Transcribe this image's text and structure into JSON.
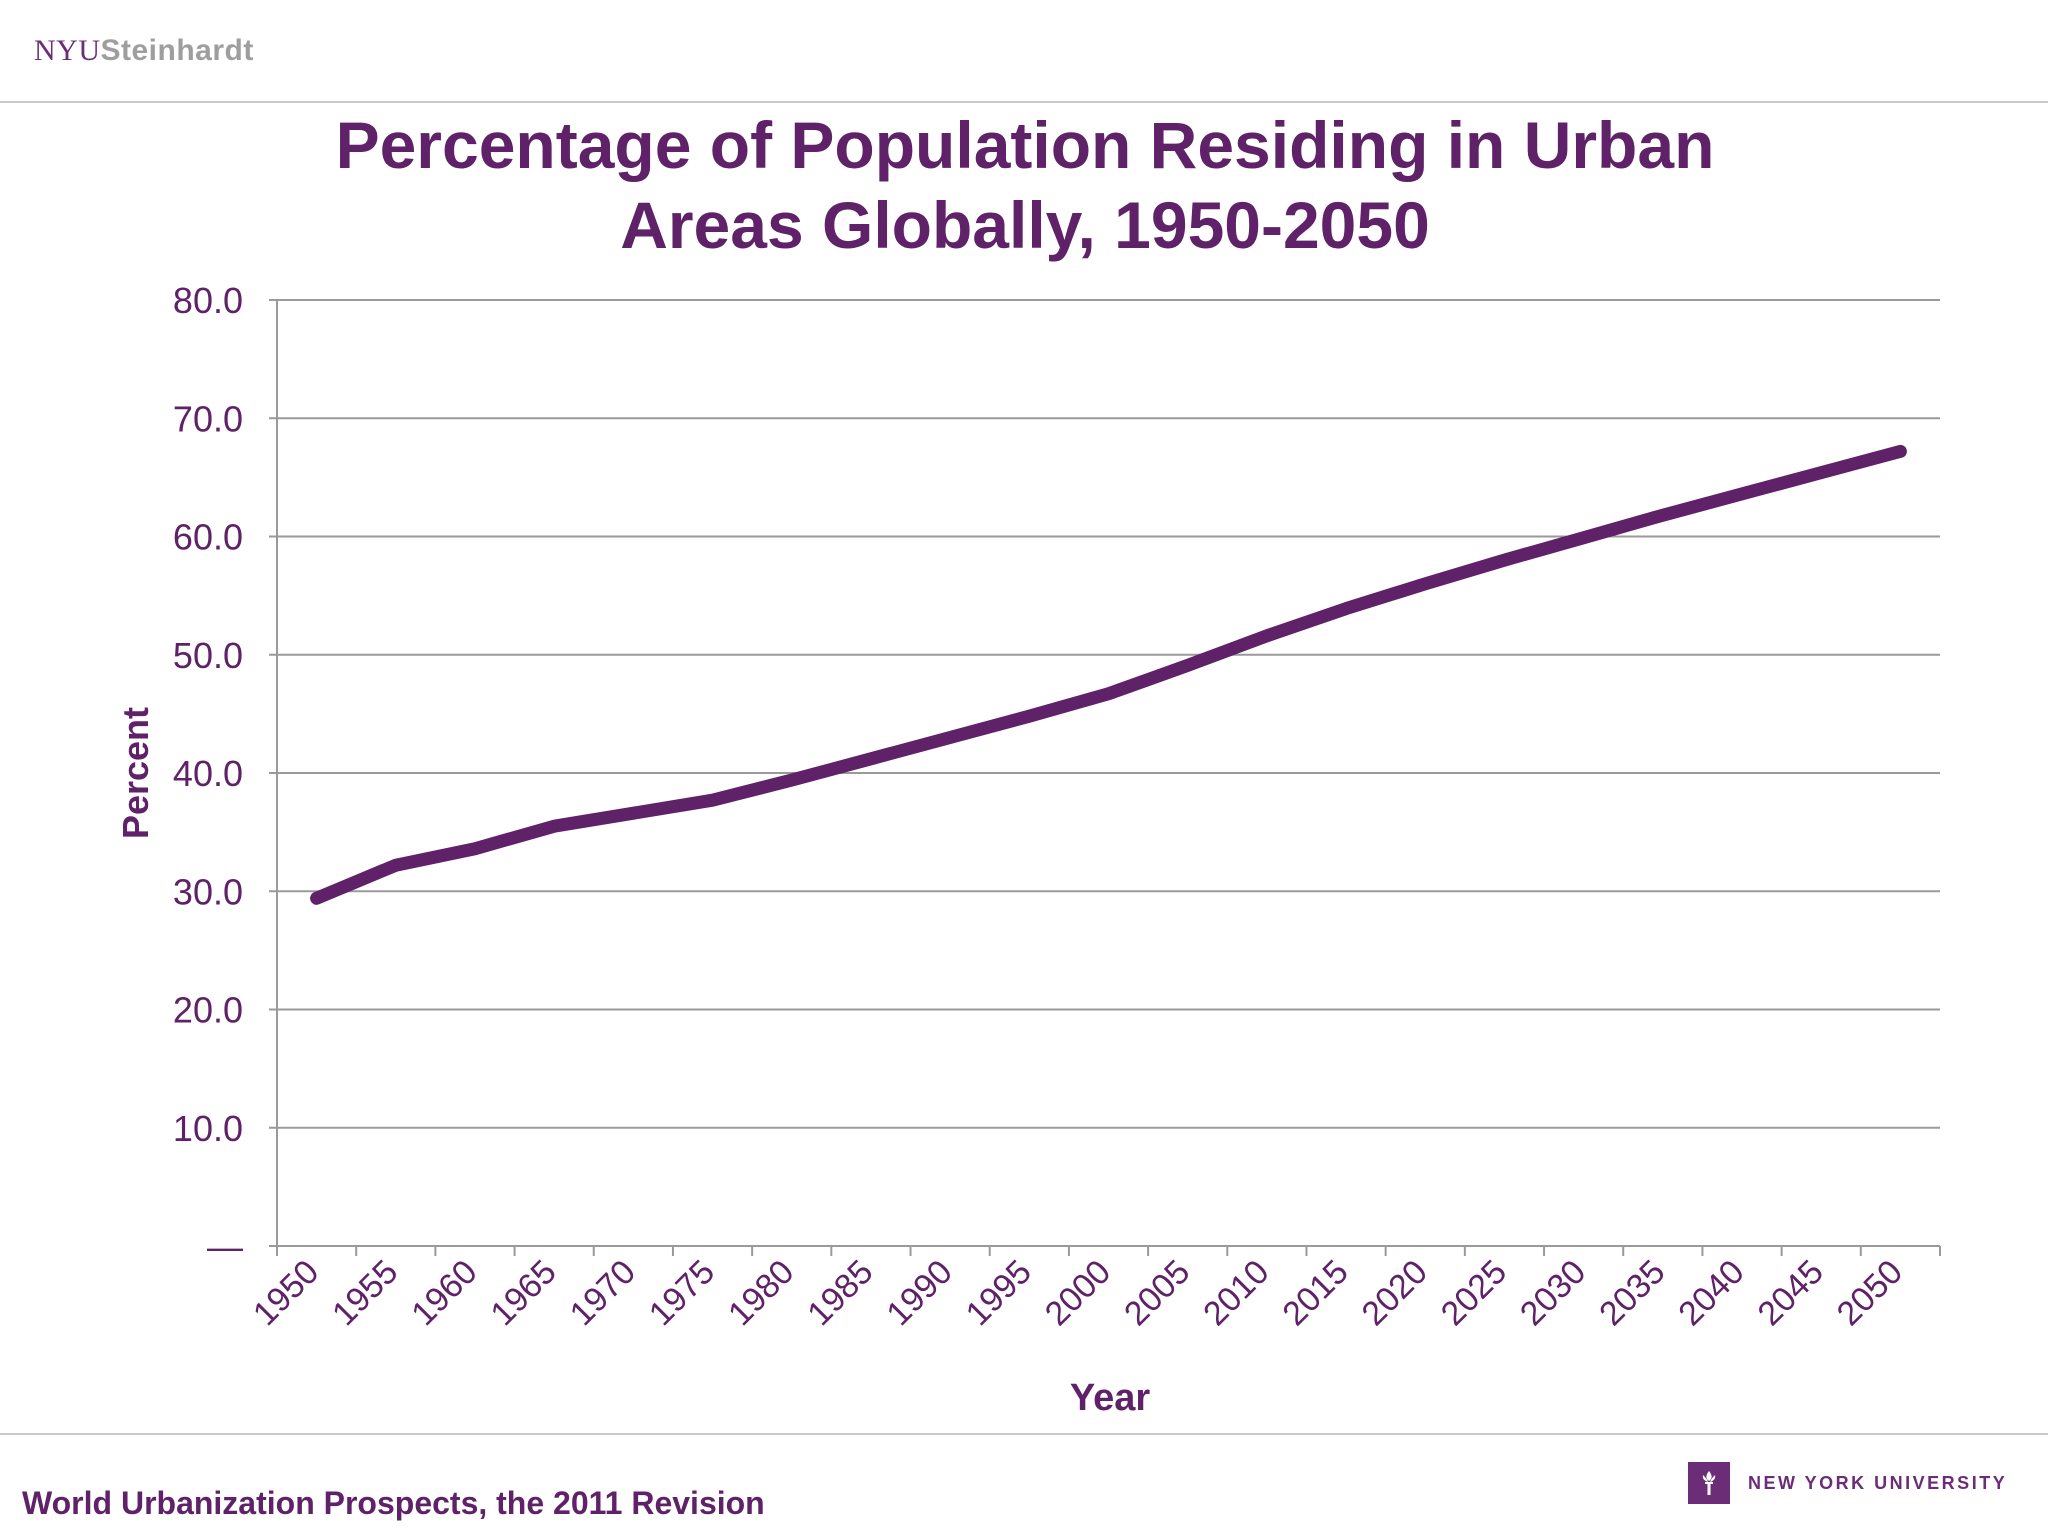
{
  "header": {
    "logo_nyu": "NYU",
    "logo_steinhardt": "Steinhardt"
  },
  "footer": {
    "source": "World Urbanization Prospects, the 2011 Revision",
    "university": "NEW YORK UNIVERSITY"
  },
  "colors": {
    "brand_purple": "#5f2168",
    "gridline": "#9a9a9a"
  },
  "icons": {
    "footer_logo": "nyu-torch-icon"
  },
  "chart_data": {
    "type": "line",
    "title_lines": [
      "Percentage of Population Residing in Urban",
      "Areas Globally, 1950-2050"
    ],
    "xlabel": "Year",
    "ylabel": "Percent",
    "ylim": [
      0,
      80
    ],
    "y_ticks": [
      {
        "value": 80,
        "label": "80.0"
      },
      {
        "value": 70,
        "label": "70.0"
      },
      {
        "value": 60,
        "label": "60.0"
      },
      {
        "value": 50,
        "label": "50.0"
      },
      {
        "value": 40,
        "label": "40.0"
      },
      {
        "value": 30,
        "label": "30.0"
      },
      {
        "value": 20,
        "label": "20.0"
      },
      {
        "value": 10,
        "label": "10.0"
      },
      {
        "value": 0,
        "label": "—"
      }
    ],
    "categories": [
      "1950",
      "1955",
      "1960",
      "1965",
      "1970",
      "1975",
      "1980",
      "1985",
      "1990",
      "1995",
      "2000",
      "2005",
      "2010",
      "2015",
      "2020",
      "2025",
      "2030",
      "2035",
      "2040",
      "2045",
      "2050"
    ],
    "grid": true,
    "legend": "none",
    "series": [
      {
        "values": [
          29.4,
          32.2,
          33.6,
          35.5,
          36.6,
          37.7,
          39.4,
          41.2,
          43.0,
          44.8,
          46.7,
          49.1,
          51.6,
          53.9,
          56.0,
          58.0,
          59.9,
          61.8,
          63.6,
          65.4,
          67.2
        ]
      }
    ]
  }
}
